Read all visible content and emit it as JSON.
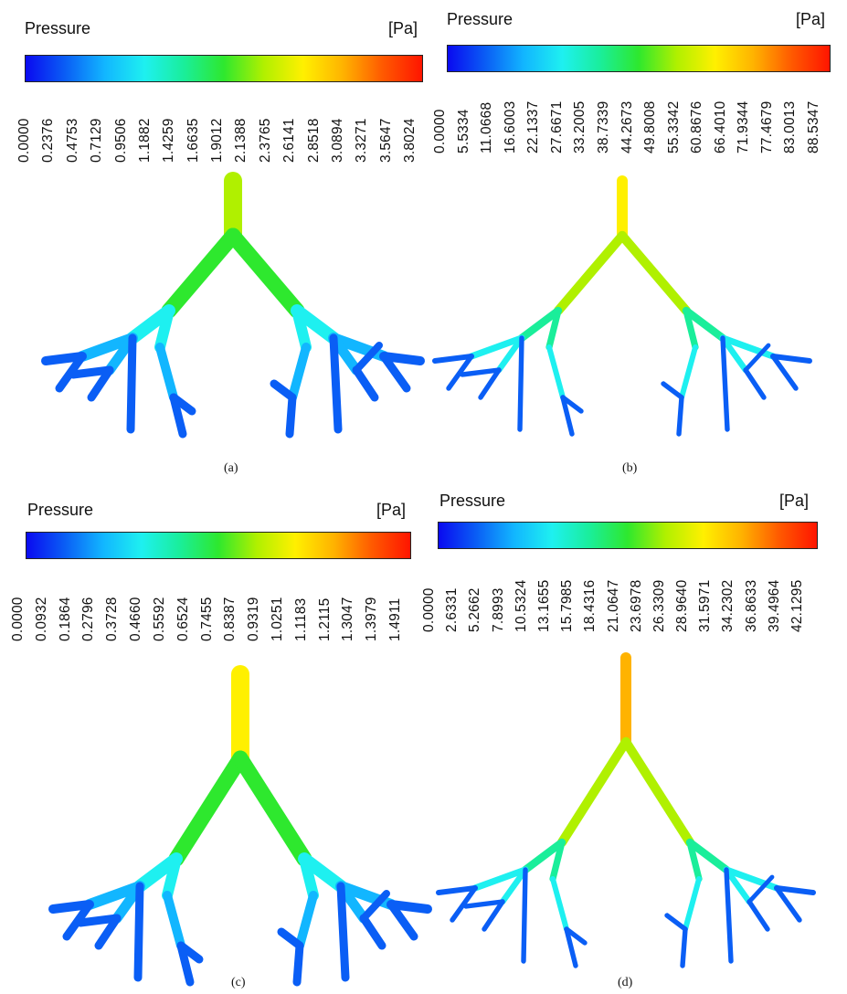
{
  "panels": [
    {
      "id": "a",
      "title": "Pressure",
      "unit": "[Pa]",
      "caption": "(a)",
      "ticks": [
        "0.0000",
        "0.2376",
        "0.4753",
        "0.7129",
        "0.9506",
        "1.1882",
        "1.4259",
        "1.6635",
        "1.9012",
        "2.1388",
        "2.3765",
        "2.6141",
        "2.8518",
        "3.0894",
        "3.3271",
        "3.5647",
        "3.8024"
      ]
    },
    {
      "id": "b",
      "title": "Pressure",
      "unit": "[Pa]",
      "caption": "(b)",
      "ticks": [
        "0.0000",
        "5.5334",
        "11.0668",
        "16.6003",
        "22.1337",
        "27.6671",
        "33.2005",
        "38.7339",
        "44.2673",
        "49.8008",
        "55.3342",
        "60.8676",
        "66.4010",
        "71.9344",
        "77.4679",
        "83.0013",
        "88.5347"
      ]
    },
    {
      "id": "c",
      "title": "Pressure",
      "unit": "[Pa]",
      "caption": "(c)",
      "ticks": [
        "0.0000",
        "0.0932",
        "0.1864",
        "0.2796",
        "0.3728",
        "0.4660",
        "0.5592",
        "0.6524",
        "0.7455",
        "0.8387",
        "0.9319",
        "1.0251",
        "1.1183",
        "1.2115",
        "1.3047",
        "1.3979",
        "1.4911"
      ]
    },
    {
      "id": "d",
      "title": "Pressure",
      "unit": "[Pa]",
      "caption": "(d)",
      "ticks": [
        "0.0000",
        "2.6331",
        "5.2662",
        "7.8993",
        "10.5324",
        "13.1655",
        "15.7985",
        "18.4316",
        "21.0647",
        "23.6978",
        "26.3309",
        "28.9640",
        "31.5971",
        "34.2302",
        "36.8633",
        "39.4964",
        "42.1295"
      ]
    }
  ],
  "colors": {
    "scale": [
      "#0a0af0",
      "#0a5ef5",
      "#12b6ff",
      "#1ef0f0",
      "#1aee9a",
      "#2ee82e",
      "#b0f000",
      "#fff000",
      "#ffb300",
      "#ff5a00",
      "#ff1500"
    ]
  }
}
